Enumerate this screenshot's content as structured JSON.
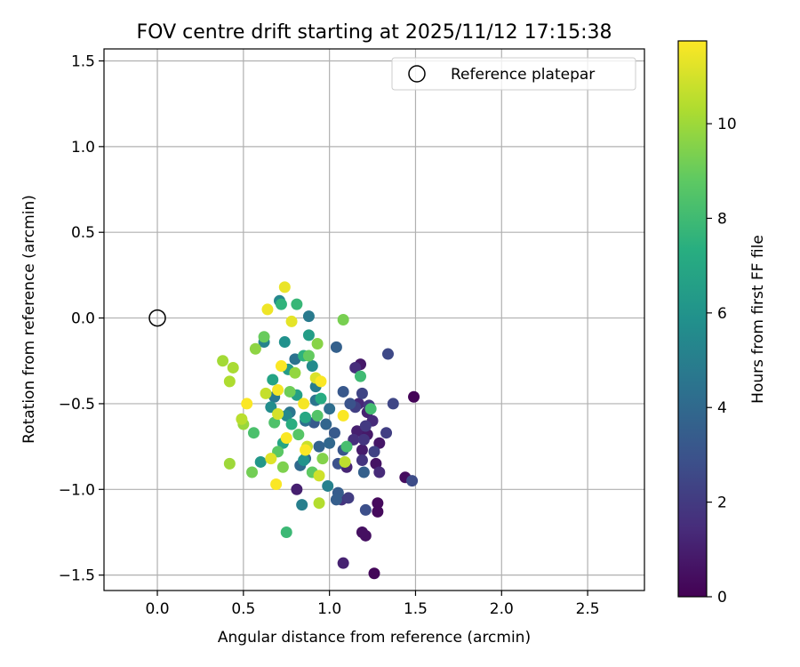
{
  "chart_data": {
    "type": "scatter",
    "title": "FOV centre drift starting at 2025/11/12 17:15:38",
    "xlabel": "Angular distance from reference (arcmin)",
    "ylabel": "Rotation from reference (arcmin)",
    "xlim": [
      -0.31,
      2.83
    ],
    "ylim": [
      -1.59,
      1.57
    ],
    "xticks": [
      0.0,
      0.5,
      1.0,
      1.5,
      2.0,
      2.5
    ],
    "xtick_labels": [
      "0.0",
      "0.5",
      "1.0",
      "1.5",
      "2.0",
      "2.5"
    ],
    "yticks": [
      -1.5,
      -1.0,
      -0.5,
      0.0,
      0.5,
      1.0,
      1.5
    ],
    "ytick_labels": [
      "−1.5",
      "−1.0",
      "−0.5",
      "0.0",
      "0.5",
      "1.0",
      "1.5"
    ],
    "grid": true,
    "legend": {
      "position": "top-right",
      "entries": [
        {
          "label": "Reference platepar",
          "marker": "open-circle"
        }
      ]
    },
    "reference_point": {
      "x": 0.0,
      "y": 0.0
    },
    "colorbar": {
      "label": "Hours from first FF file",
      "min": 0,
      "max": 11.75,
      "ticks": [
        0,
        2,
        4,
        6,
        8,
        10
      ],
      "tick_labels": [
        "0",
        "2",
        "4",
        "6",
        "8",
        "10"
      ],
      "colormap": "viridis"
    },
    "points": [
      {
        "x": 1.49,
        "y": -0.46,
        "h": 0.1
      },
      {
        "x": 1.26,
        "y": -1.49,
        "h": 0.2
      },
      {
        "x": 1.28,
        "y": -1.08,
        "h": 0.3
      },
      {
        "x": 1.28,
        "y": -1.13,
        "h": 0.3
      },
      {
        "x": 1.44,
        "y": -0.93,
        "h": 0.4
      },
      {
        "x": 1.21,
        "y": -1.27,
        "h": 0.5
      },
      {
        "x": 1.19,
        "y": -1.25,
        "h": 0.5
      },
      {
        "x": 1.27,
        "y": -0.85,
        "h": 0.6
      },
      {
        "x": 1.29,
        "y": -0.73,
        "h": 0.7
      },
      {
        "x": 1.18,
        "y": -0.27,
        "h": 0.8
      },
      {
        "x": 1.22,
        "y": -0.68,
        "h": 0.8
      },
      {
        "x": 1.19,
        "y": -0.77,
        "h": 0.9
      },
      {
        "x": 1.16,
        "y": -0.66,
        "h": 1.0
      },
      {
        "x": 0.81,
        "y": -1.0,
        "h": 1.0
      },
      {
        "x": 1.08,
        "y": -1.43,
        "h": 1.1
      },
      {
        "x": 1.22,
        "y": -0.55,
        "h": 1.1
      },
      {
        "x": 1.1,
        "y": -0.87,
        "h": 1.2
      },
      {
        "x": 1.17,
        "y": -0.5,
        "h": 1.3
      },
      {
        "x": 1.25,
        "y": -0.6,
        "h": 1.4
      },
      {
        "x": 1.29,
        "y": -0.9,
        "h": 1.4
      },
      {
        "x": 1.15,
        "y": -0.29,
        "h": 1.5
      },
      {
        "x": 1.14,
        "y": -0.71,
        "h": 1.6
      },
      {
        "x": 1.07,
        "y": -1.06,
        "h": 1.7
      },
      {
        "x": 1.19,
        "y": -0.83,
        "h": 1.8
      },
      {
        "x": 1.2,
        "y": -0.71,
        "h": 1.8
      },
      {
        "x": 1.23,
        "y": -0.51,
        "h": 1.9
      },
      {
        "x": 1.21,
        "y": -0.63,
        "h": 2.0
      },
      {
        "x": 1.11,
        "y": -1.05,
        "h": 2.1
      },
      {
        "x": 1.15,
        "y": -0.52,
        "h": 2.2
      },
      {
        "x": 1.33,
        "y": -0.67,
        "h": 2.2
      },
      {
        "x": 1.26,
        "y": -0.78,
        "h": 2.3
      },
      {
        "x": 1.19,
        "y": -0.44,
        "h": 2.4
      },
      {
        "x": 1.37,
        "y": -0.5,
        "h": 2.5
      },
      {
        "x": 1.34,
        "y": -0.21,
        "h": 2.6
      },
      {
        "x": 1.48,
        "y": -0.95,
        "h": 2.7
      },
      {
        "x": 1.21,
        "y": -1.12,
        "h": 2.8
      },
      {
        "x": 1.05,
        "y": -0.85,
        "h": 2.9
      },
      {
        "x": 1.12,
        "y": -0.5,
        "h": 3.0
      },
      {
        "x": 1.08,
        "y": -0.77,
        "h": 3.1
      },
      {
        "x": 1.08,
        "y": -0.43,
        "h": 3.2
      },
      {
        "x": 1.03,
        "y": -0.67,
        "h": 3.3
      },
      {
        "x": 0.91,
        "y": -0.61,
        "h": 3.3
      },
      {
        "x": 1.05,
        "y": -1.02,
        "h": 3.4
      },
      {
        "x": 1.04,
        "y": -1.06,
        "h": 3.5
      },
      {
        "x": 1.2,
        "y": -0.9,
        "h": 3.6
      },
      {
        "x": 1.04,
        "y": -0.17,
        "h": 3.6
      },
      {
        "x": 0.94,
        "y": -0.75,
        "h": 3.7
      },
      {
        "x": 0.98,
        "y": -0.62,
        "h": 3.8
      },
      {
        "x": 1.0,
        "y": -0.73,
        "h": 3.9
      },
      {
        "x": 0.83,
        "y": -0.86,
        "h": 4.0
      },
      {
        "x": 0.86,
        "y": -0.82,
        "h": 4.1
      },
      {
        "x": 1.0,
        "y": -0.53,
        "h": 4.2
      },
      {
        "x": 0.86,
        "y": -0.6,
        "h": 4.3
      },
      {
        "x": 0.8,
        "y": -0.24,
        "h": 4.4
      },
      {
        "x": 0.92,
        "y": -0.48,
        "h": 4.5
      },
      {
        "x": 0.77,
        "y": -0.55,
        "h": 4.6
      },
      {
        "x": 0.68,
        "y": -0.46,
        "h": 4.7
      },
      {
        "x": 0.88,
        "y": 0.01,
        "h": 4.8
      },
      {
        "x": 0.92,
        "y": -0.4,
        "h": 4.9
      },
      {
        "x": 0.84,
        "y": -1.09,
        "h": 5.0
      },
      {
        "x": 0.99,
        "y": -0.98,
        "h": 5.1
      },
      {
        "x": 0.62,
        "y": -0.14,
        "h": 5.2
      },
      {
        "x": 0.71,
        "y": 0.1,
        "h": 5.4
      },
      {
        "x": 0.75,
        "y": -0.57,
        "h": 5.5
      },
      {
        "x": 0.9,
        "y": -0.28,
        "h": 5.6
      },
      {
        "x": 0.66,
        "y": -0.52,
        "h": 5.7
      },
      {
        "x": 0.74,
        "y": -0.14,
        "h": 5.9
      },
      {
        "x": 0.85,
        "y": -0.83,
        "h": 6.0
      },
      {
        "x": 0.6,
        "y": -0.84,
        "h": 6.2
      },
      {
        "x": 0.76,
        "y": -0.3,
        "h": 6.4
      },
      {
        "x": 0.88,
        "y": -0.1,
        "h": 6.5
      },
      {
        "x": 0.81,
        "y": -0.45,
        "h": 6.6
      },
      {
        "x": 0.67,
        "y": -0.36,
        "h": 6.8
      },
      {
        "x": 0.73,
        "y": -0.73,
        "h": 6.9
      },
      {
        "x": 0.86,
        "y": -0.58,
        "h": 7.0
      },
      {
        "x": 0.95,
        "y": -0.47,
        "h": 7.2
      },
      {
        "x": 0.78,
        "y": -0.62,
        "h": 7.3
      },
      {
        "x": 0.85,
        "y": -0.22,
        "h": 7.5
      },
      {
        "x": 0.72,
        "y": 0.08,
        "h": 7.6
      },
      {
        "x": 0.81,
        "y": 0.08,
        "h": 7.8
      },
      {
        "x": 0.75,
        "y": -1.25,
        "h": 7.9
      },
      {
        "x": 1.18,
        "y": -0.34,
        "h": 8.0
      },
      {
        "x": 1.24,
        "y": -0.53,
        "h": 8.1
      },
      {
        "x": 1.1,
        "y": -0.75,
        "h": 8.2
      },
      {
        "x": 0.56,
        "y": -0.67,
        "h": 8.3
      },
      {
        "x": 0.68,
        "y": -0.61,
        "h": 8.4
      },
      {
        "x": 0.93,
        "y": -0.57,
        "h": 8.5
      },
      {
        "x": 0.82,
        "y": -0.68,
        "h": 8.6
      },
      {
        "x": 0.7,
        "y": -0.78,
        "h": 8.7
      },
      {
        "x": 0.9,
        "y": -0.9,
        "h": 8.8
      },
      {
        "x": 0.88,
        "y": -0.22,
        "h": 8.9
      },
      {
        "x": 0.62,
        "y": -0.11,
        "h": 9.0
      },
      {
        "x": 0.77,
        "y": -0.43,
        "h": 9.1
      },
      {
        "x": 0.55,
        "y": -0.9,
        "h": 9.2
      },
      {
        "x": 1.08,
        "y": -0.01,
        "h": 9.3
      },
      {
        "x": 0.73,
        "y": -0.87,
        "h": 9.4
      },
      {
        "x": 0.96,
        "y": -0.82,
        "h": 9.5
      },
      {
        "x": 0.93,
        "y": -0.15,
        "h": 9.6
      },
      {
        "x": 0.57,
        "y": -0.18,
        "h": 9.7
      },
      {
        "x": 0.8,
        "y": -0.32,
        "h": 9.8
      },
      {
        "x": 0.5,
        "y": -0.62,
        "h": 9.9
      },
      {
        "x": 0.42,
        "y": -0.85,
        "h": 10.0
      },
      {
        "x": 0.38,
        "y": -0.25,
        "h": 10.1
      },
      {
        "x": 0.44,
        "y": -0.29,
        "h": 10.2
      },
      {
        "x": 0.42,
        "y": -0.37,
        "h": 10.3
      },
      {
        "x": 0.94,
        "y": -1.08,
        "h": 10.4
      },
      {
        "x": 0.49,
        "y": -0.59,
        "h": 10.5
      },
      {
        "x": 1.09,
        "y": -0.84,
        "h": 10.6
      },
      {
        "x": 0.63,
        "y": -0.44,
        "h": 10.7
      },
      {
        "x": 0.87,
        "y": -0.75,
        "h": 10.8
      },
      {
        "x": 0.94,
        "y": -0.92,
        "h": 10.9
      },
      {
        "x": 0.7,
        "y": -0.56,
        "h": 11.0
      },
      {
        "x": 0.92,
        "y": -0.35,
        "h": 11.1
      },
      {
        "x": 0.66,
        "y": -0.82,
        "h": 11.2
      },
      {
        "x": 0.78,
        "y": -0.02,
        "h": 11.3
      },
      {
        "x": 0.74,
        "y": 0.18,
        "h": 11.4
      },
      {
        "x": 0.64,
        "y": 0.05,
        "h": 11.5
      },
      {
        "x": 0.7,
        "y": -0.42,
        "h": 11.6
      },
      {
        "x": 0.85,
        "y": -0.5,
        "h": 11.6
      },
      {
        "x": 1.08,
        "y": -0.57,
        "h": 11.7
      },
      {
        "x": 0.69,
        "y": -0.97,
        "h": 11.7
      },
      {
        "x": 0.72,
        "y": -0.28,
        "h": 11.7
      },
      {
        "x": 0.95,
        "y": -0.37,
        "h": 11.7
      },
      {
        "x": 0.75,
        "y": -0.7,
        "h": 11.7
      },
      {
        "x": 0.86,
        "y": -0.77,
        "h": 11.7
      },
      {
        "x": 0.52,
        "y": -0.5,
        "h": 11.7
      }
    ]
  }
}
